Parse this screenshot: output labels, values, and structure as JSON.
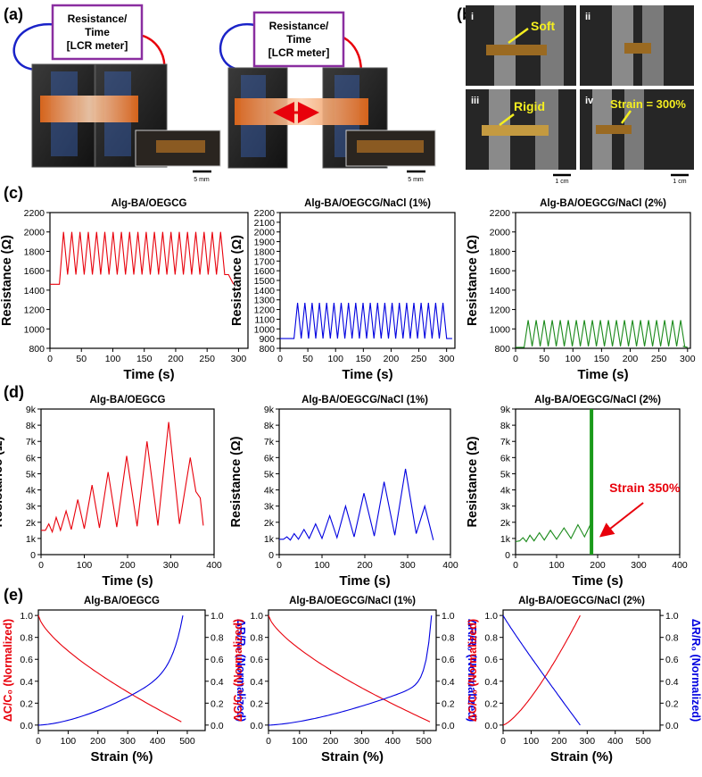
{
  "panels": {
    "a": "(a)",
    "b": "(b)",
    "c": "(c)",
    "d": "(d)",
    "e": "(e)"
  },
  "panel_a": {
    "box_line1": "Resistance/",
    "box_line2": "Time",
    "box_line3": "[LCR meter]",
    "scale": "5 mm"
  },
  "panel_b": {
    "roman": [
      "i",
      "ii",
      "iii",
      "iv"
    ],
    "label_soft": "Soft",
    "label_rigid": "Rigid",
    "label_strain": "Strain = 300%",
    "scale": "1 cm"
  },
  "colors": {
    "red": "#e8000b",
    "blue": "#0000e0",
    "green": "#1a8a1a",
    "strain_line": "#1a9a1a"
  },
  "chart_data": [
    {
      "id": "c1",
      "type": "line",
      "title": "Alg-BA/OEGCG",
      "xlabel": "Time (s)",
      "ylabel": "Resistance (Ω)",
      "xlim": [
        0,
        315
      ],
      "ylim": [
        800,
        2200
      ],
      "xticks": [
        "0",
        "50",
        "100",
        "150",
        "200",
        "250",
        "300"
      ],
      "yticks": [
        "800",
        "1000",
        "1200",
        "1400",
        "1600",
        "1800",
        "2000",
        "2200"
      ],
      "series": [
        {
          "name": "Alg-BA/OEGCG",
          "color": "red",
          "baseline": 1460,
          "cycle_min": 1560,
          "cycle_max": 2000,
          "start": 15,
          "end": 278,
          "cycles": 20,
          "tail_end": 292
        }
      ]
    },
    {
      "id": "c2",
      "type": "line",
      "title": "Alg-BA/OEGCG/NaCl (1%)",
      "xlabel": "Time (s)",
      "ylabel": "Resistance (Ω)",
      "xlim": [
        0,
        315
      ],
      "ylim": [
        800,
        2200
      ],
      "xticks": [
        "0",
        "50",
        "100",
        "150",
        "200",
        "250",
        "300"
      ],
      "yticks": [
        "800",
        "900",
        "1000",
        "1100",
        "1200",
        "1300",
        "1400",
        "1500",
        "1600",
        "1700",
        "1800",
        "1900",
        "2000",
        "2100",
        "2200"
      ],
      "series": [
        {
          "name": "Alg-BA/OEGCG/NaCl (1%)",
          "color": "blue",
          "baseline": 900,
          "cycle_min": 900,
          "cycle_max": 1270,
          "start": 25,
          "end": 300,
          "cycles": 21,
          "tail_end": 310
        }
      ]
    },
    {
      "id": "c3",
      "type": "line",
      "title": "Alg-BA/OEGCG/NaCl (2%)",
      "xlabel": "Time (s)",
      "ylabel": "Resistance (Ω)",
      "xlim": [
        0,
        305
      ],
      "ylim": [
        800,
        2200
      ],
      "xticks": [
        "0",
        "50",
        "100",
        "150",
        "200",
        "250",
        "300"
      ],
      "yticks": [
        "800",
        "1000",
        "1200",
        "1400",
        "1600",
        "1800",
        "2000",
        "2200"
      ],
      "series": [
        {
          "name": "Alg-BA/OEGCG/NaCl (2%)",
          "color": "green",
          "baseline": 810,
          "cycle_min": 820,
          "cycle_max": 1090,
          "start": 15,
          "end": 295,
          "cycles": 20,
          "tail_end": 300
        }
      ]
    },
    {
      "id": "d1",
      "type": "line",
      "title": "Alg-BA/OEGCG",
      "xlabel": "Time (s)",
      "ylabel": "Resistance (Ω)",
      "xlim": [
        0,
        400
      ],
      "ylim": [
        0,
        9000
      ],
      "xticks": [
        "0",
        "100",
        "200",
        "300",
        "400"
      ],
      "yticks": [
        "0",
        "1k",
        "2k",
        "3k",
        "4k",
        "5k",
        "6k",
        "7k",
        "8k",
        "9k"
      ],
      "series": [
        {
          "name": "Alg-BA/OEGCG",
          "color": "red",
          "points": [
            [
              0,
              1500
            ],
            [
              10,
              1500
            ],
            [
              18,
              1900
            ],
            [
              26,
              1400
            ],
            [
              35,
              2300
            ],
            [
              45,
              1500
            ],
            [
              58,
              2700
            ],
            [
              70,
              1550
            ],
            [
              85,
              3400
            ],
            [
              100,
              1600
            ],
            [
              118,
              4300
            ],
            [
              135,
              1650
            ],
            [
              155,
              5100
            ],
            [
              175,
              1700
            ],
            [
              198,
              6100
            ],
            [
              222,
              1750
            ],
            [
              245,
              7000
            ],
            [
              270,
              1800
            ],
            [
              295,
              8200
            ],
            [
              320,
              1900
            ],
            [
              345,
              6000
            ],
            [
              358,
              3900
            ],
            [
              368,
              3500
            ],
            [
              375,
              1800
            ]
          ]
        }
      ]
    },
    {
      "id": "d2",
      "type": "line",
      "title": "Alg-BA/OEGCG/NaCl (1%)",
      "xlabel": "Time (s)",
      "ylabel": "Resistance (Ω)",
      "xlim": [
        0,
        400
      ],
      "ylim": [
        0,
        9000
      ],
      "xticks": [
        "0",
        "100",
        "200",
        "300",
        "400"
      ],
      "yticks": [
        "0",
        "1k",
        "2k",
        "3k",
        "4k",
        "5k",
        "6k",
        "7k",
        "8k",
        "9k"
      ],
      "series": [
        {
          "name": "Alg-BA/OEGCG/NaCl (1%)",
          "color": "blue",
          "points": [
            [
              0,
              950
            ],
            [
              10,
              950
            ],
            [
              18,
              1100
            ],
            [
              26,
              900
            ],
            [
              35,
              1300
            ],
            [
              45,
              950
            ],
            [
              58,
              1550
            ],
            [
              70,
              1000
            ],
            [
              85,
              1900
            ],
            [
              100,
              1000
            ],
            [
              118,
              2400
            ],
            [
              135,
              1050
            ],
            [
              155,
              3000
            ],
            [
              175,
              1100
            ],
            [
              198,
              3800
            ],
            [
              222,
              1150
            ],
            [
              245,
              4500
            ],
            [
              270,
              1200
            ],
            [
              295,
              5300
            ],
            [
              320,
              1300
            ],
            [
              340,
              3000
            ],
            [
              360,
              900
            ]
          ]
        }
      ]
    },
    {
      "id": "d3",
      "type": "line",
      "title": "Alg-BA/OEGCG/NaCl (2%)",
      "xlabel": "Time (s)",
      "ylabel": "Resistance (Ω)",
      "xlim": [
        0,
        400
      ],
      "ylim": [
        0,
        9000
      ],
      "xticks": [
        "0",
        "100",
        "200",
        "300",
        "400"
      ],
      "yticks": [
        "0",
        "1k",
        "2k",
        "3k",
        "4k",
        "5k",
        "6k",
        "7k",
        "8k",
        "9k"
      ],
      "annotation": "Strain 350%",
      "strain_time": 185,
      "series": [
        {
          "name": "Alg-BA/OEGCG/NaCl (2%)",
          "color": "green",
          "points": [
            [
              0,
              800
            ],
            [
              10,
              850
            ],
            [
              18,
              1050
            ],
            [
              26,
              800
            ],
            [
              35,
              1200
            ],
            [
              45,
              850
            ],
            [
              58,
              1350
            ],
            [
              70,
              900
            ],
            [
              85,
              1500
            ],
            [
              100,
              950
            ],
            [
              118,
              1650
            ],
            [
              135,
              1000
            ],
            [
              152,
              1850
            ],
            [
              168,
              1100
            ],
            [
              183,
              1900
            ],
            [
              186,
              1200
            ]
          ]
        }
      ]
    },
    {
      "id": "e1",
      "type": "line",
      "title": "Alg-BA/OEGCG",
      "xlabel": "Strain (%)",
      "ylabel": "ΔC/C₀ (Normalized)",
      "ylabel2": "ΔR/R₀ (Normalized)",
      "xlim": [
        0,
        560
      ],
      "ylim": [
        -0.05,
        1.05
      ],
      "xticks": [
        "0",
        "100",
        "200",
        "300",
        "400",
        "500"
      ],
      "yticks": [
        "0.0",
        "0.2",
        "0.4",
        "0.6",
        "0.8",
        "1.0"
      ],
      "series": [
        {
          "name": "ΔC/C0",
          "color": "red",
          "strain_max": 480,
          "shape": "cap_decay"
        },
        {
          "name": "ΔR/R0",
          "color": "blue",
          "strain_max": 485,
          "shape": "res_rise"
        }
      ]
    },
    {
      "id": "e2",
      "type": "line",
      "title": "Alg-BA/OEGCG/NaCl (1%)",
      "xlabel": "Strain (%)",
      "ylabel": "ΔC/C₀ (Normalized)",
      "ylabel2": "ΔR/R₀ (Normalized)",
      "xlim": [
        0,
        540
      ],
      "ylim": [
        -0.05,
        1.05
      ],
      "xticks": [
        "0",
        "100",
        "200",
        "300",
        "400",
        "500"
      ],
      "yticks": [
        "0.0",
        "0.2",
        "0.4",
        "0.6",
        "0.8",
        "1.0"
      ],
      "series": [
        {
          "name": "ΔC/C0",
          "color": "red",
          "strain_max": 520,
          "shape": "cap_decay"
        },
        {
          "name": "ΔR/R0",
          "color": "blue",
          "strain_max": 525,
          "shape": "res_rise_sharp"
        }
      ]
    },
    {
      "id": "e3",
      "type": "line",
      "title": "Alg-BA/OEGCG/NaCl (2%)",
      "xlabel": "Strain (%)",
      "ylabel": "ΔC/C₀ (Normalized)",
      "ylabel2": "ΔR/R₀ (Normalized)",
      "xlim": [
        0,
        560
      ],
      "ylim": [
        -0.05,
        1.05
      ],
      "xticks": [
        "0",
        "100",
        "200",
        "300",
        "400",
        "500"
      ],
      "yticks": [
        "0.0",
        "0.2",
        "0.4",
        "0.6",
        "0.8",
        "1.0"
      ],
      "series": [
        {
          "name": "ΔR/R0",
          "color": "red",
          "strain_max": 275,
          "shape": "rise_convex"
        },
        {
          "name": "ΔC/C0",
          "color": "blue",
          "strain_max": 275,
          "shape": "decay_linear"
        }
      ]
    }
  ]
}
